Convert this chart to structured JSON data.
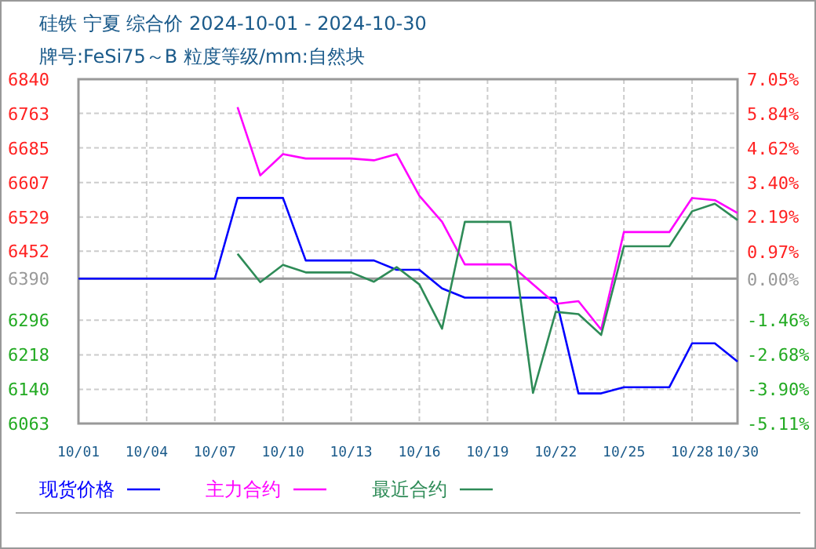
{
  "chart_data": {
    "type": "line",
    "title": "硅铁 宁夏 综合价 2024-10-01 - 2024-10-30",
    "subtitle": "牌号:FeSi75～B 粒度等级/mm:自然块",
    "categories": [
      "10/01",
      null,
      null,
      "10/04",
      null,
      null,
      "10/07",
      null,
      null,
      "10/10",
      null,
      null,
      "10/13",
      null,
      null,
      "10/16",
      null,
      null,
      "10/19",
      null,
      null,
      "10/22",
      null,
      null,
      "10/25",
      null,
      null,
      "10/28",
      null,
      "10/30"
    ],
    "series": [
      {
        "name": "现货价格",
        "color": "#0000ff",
        "values": [
          6390,
          6390,
          6390,
          6390,
          6390,
          6390,
          6390,
          6572,
          6572,
          6572,
          6431,
          6431,
          6431,
          6431,
          6410,
          6410,
          6368,
          6347,
          6347,
          6347,
          6347,
          6347,
          6131,
          6131,
          6145,
          6145,
          6145,
          6244,
          6244,
          6203
        ]
      },
      {
        "name": "主力合约",
        "color": "#ff00ff",
        "values": [
          null,
          null,
          null,
          null,
          null,
          null,
          null,
          6777,
          6623,
          6671,
          6661,
          6661,
          6661,
          6657,
          6671,
          6577,
          6518,
          6422,
          6422,
          6422,
          6377,
          6333,
          6339,
          6275,
          6495,
          6495,
          6495,
          6572,
          6567,
          6538
        ]
      },
      {
        "name": "最近合约",
        "color": "#2e8b57",
        "values": [
          null,
          null,
          null,
          null,
          null,
          null,
          null,
          6446,
          6382,
          6421,
          6404,
          6404,
          6404,
          6383,
          6416,
          6377,
          6277,
          6518,
          6518,
          6518,
          6132,
          6315,
          6310,
          6263,
          6463,
          6463,
          6463,
          6542,
          6559,
          6522
        ]
      }
    ],
    "ylim": [
      6063,
      6840
    ],
    "yticks": [
      6063,
      6140,
      6218,
      6296,
      6390,
      6452,
      6529,
      6607,
      6685,
      6763,
      6840
    ],
    "y2lim": [
      -5.11,
      7.05
    ],
    "y2ticks": [
      {
        "value": -5.11,
        "label": "-5.11%"
      },
      {
        "value": -3.9,
        "label": "-3.90%"
      },
      {
        "value": -2.68,
        "label": "-2.68%"
      },
      {
        "value": -1.46,
        "label": "-1.46%"
      },
      {
        "value": 0,
        "label": "0.00%"
      },
      {
        "value": 0.97,
        "label": "0.97%"
      },
      {
        "value": 2.19,
        "label": "2.19%"
      },
      {
        "value": 3.4,
        "label": "3.40%"
      },
      {
        "value": 4.62,
        "label": "4.62%"
      },
      {
        "value": 5.84,
        "label": "5.84%"
      },
      {
        "value": 7.05,
        "label": "7.05%"
      }
    ],
    "ref_lines": [
      {
        "axis": "y",
        "value": 6390,
        "color": "#999999",
        "line_style": "solid"
      }
    ],
    "grid": true,
    "legend": "bottom",
    "marker": "none",
    "line_style": "solid"
  }
}
